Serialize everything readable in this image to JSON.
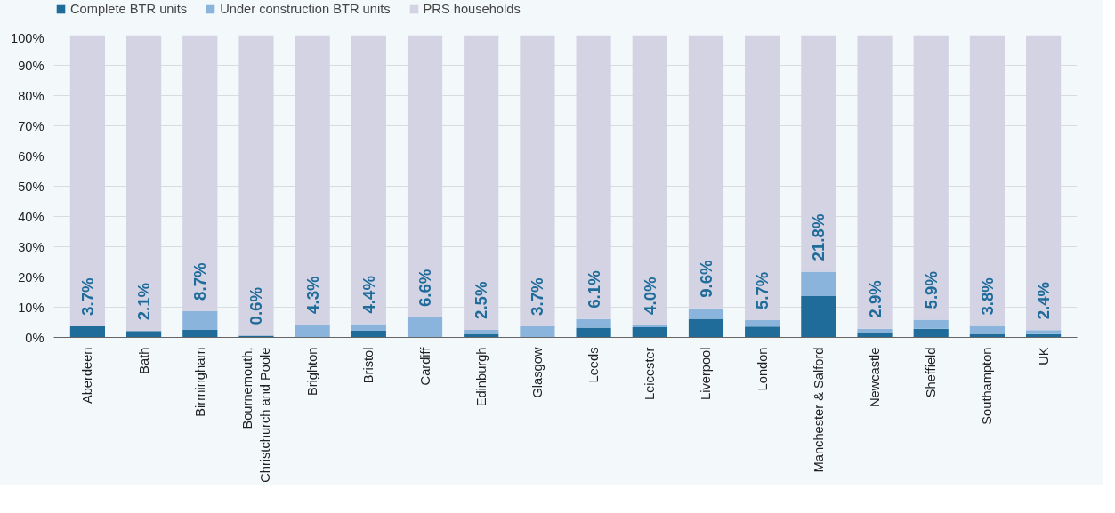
{
  "chart_data": {
    "type": "bar",
    "stacked": true,
    "categories": [
      "Aberdeen",
      "Bath",
      "Birmingham",
      "Bournemouth,\nChristchurch and Poole",
      "Brighton",
      "Bristol",
      "Cardiff",
      "Edinburgh",
      "Glasgow",
      "Leeds",
      "Leicester",
      "Liverpool",
      "London",
      "Manchester & Salford",
      "Newcastle",
      "Sheffield",
      "Southampton",
      "UK"
    ],
    "series": [
      {
        "name": "Complete BTR units",
        "color": "#1f6b9a",
        "values": [
          3.7,
          2.1,
          2.5,
          0.6,
          0.1,
          2.2,
          0,
          1.2,
          0,
          3.2,
          3.4,
          6.2,
          3.6,
          13.7,
          1.8,
          2.9,
          1.2,
          1.1
        ]
      },
      {
        "name": "Under construction BTR units",
        "color": "#8ab4dc",
        "values": [
          0,
          0,
          6.2,
          0,
          4.2,
          2.2,
          6.6,
          1.3,
          3.7,
          2.9,
          0.6,
          3.4,
          2.1,
          8.1,
          1.1,
          3.0,
          2.6,
          1.3
        ]
      },
      {
        "name": "PRS households",
        "color": "#d3d3e3",
        "values": [
          96.3,
          97.9,
          91.3,
          99.4,
          95.7,
          95.6,
          93.4,
          97.5,
          96.3,
          93.9,
          96.0,
          90.4,
          94.3,
          78.2,
          97.1,
          94.1,
          96.2,
          97.6
        ]
      }
    ],
    "annotations": [
      {
        "text": "3.7%",
        "x": "Aberdeen",
        "y": 3.7
      },
      {
        "text": "2.1%",
        "x": "Bath",
        "y": 2.1
      },
      {
        "text": "8.7%",
        "x": "Birmingham",
        "y": 8.7
      },
      {
        "text": "0.6%",
        "x": "Bournemouth,\nChristchurch and Poole",
        "y": 0.6
      },
      {
        "text": "4.3%",
        "x": "Brighton",
        "y": 4.3
      },
      {
        "text": "4.4%",
        "x": "Bristol",
        "y": 4.4
      },
      {
        "text": "6.6%",
        "x": "Cardiff",
        "y": 6.6
      },
      {
        "text": "2.5%",
        "x": "Edinburgh",
        "y": 2.5
      },
      {
        "text": "3.7%",
        "x": "Glasgow",
        "y": 3.7
      },
      {
        "text": "6.1%",
        "x": "Leeds",
        "y": 6.1
      },
      {
        "text": "4.0%",
        "x": "Leicester",
        "y": 4.0
      },
      {
        "text": "9.6%",
        "x": "Liverpool",
        "y": 9.6
      },
      {
        "text": "5.7%",
        "x": "London",
        "y": 5.7
      },
      {
        "text": "21.8%",
        "x": "Manchester & Salford",
        "y": 21.8
      },
      {
        "text": "2.9%",
        "x": "Newcastle",
        "y": 2.9
      },
      {
        "text": "5.9%",
        "x": "Sheffield",
        "y": 5.9
      },
      {
        "text": "3.8%",
        "x": "Southampton",
        "y": 3.8
      },
      {
        "text": "2.4%",
        "x": "UK",
        "y": 2.4
      }
    ],
    "ylim": [
      0,
      100
    ],
    "yticks": [
      {
        "value": 0,
        "label": "0%"
      },
      {
        "value": 10,
        "label": "10%"
      },
      {
        "value": 20,
        "label": "20%"
      },
      {
        "value": 30,
        "label": "30%"
      },
      {
        "value": 40,
        "label": "40%"
      },
      {
        "value": 50,
        "label": "50%"
      },
      {
        "value": 60,
        "label": "60%"
      },
      {
        "value": 70,
        "label": "70%"
      },
      {
        "value": 80,
        "label": "80%"
      },
      {
        "value": 90,
        "label": "90%"
      },
      {
        "value": 100,
        "label": "100%"
      }
    ],
    "grid": "y",
    "legend": "top left"
  }
}
